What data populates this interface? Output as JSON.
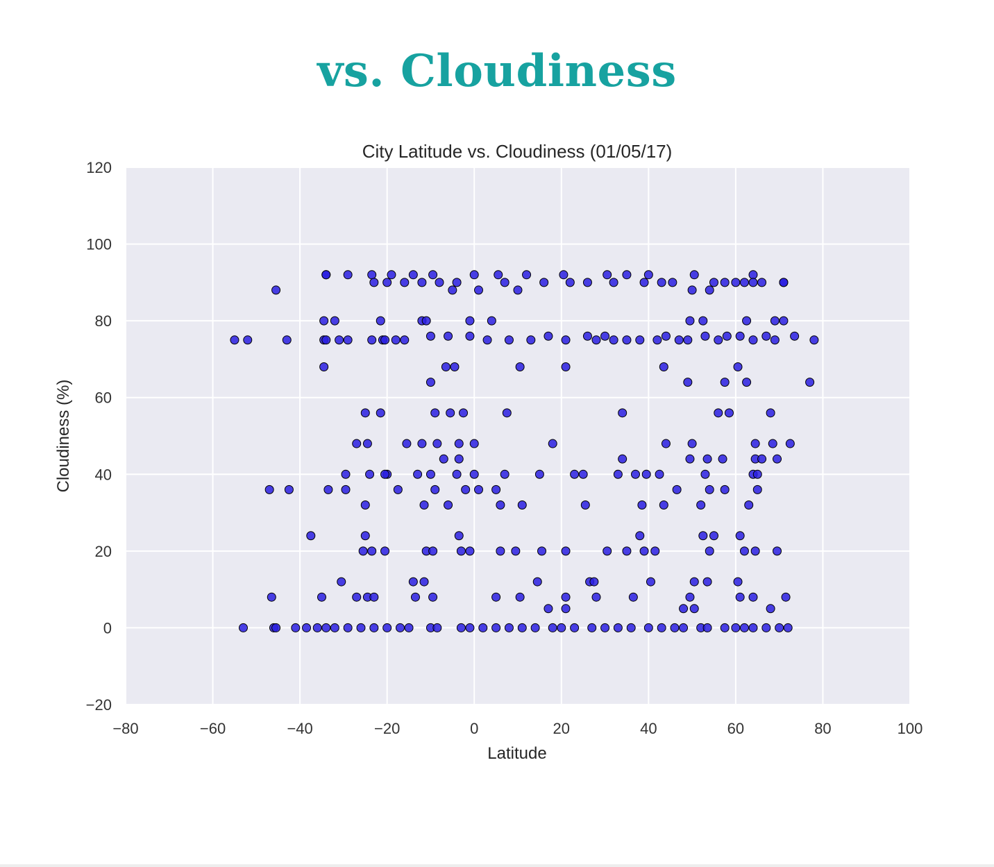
{
  "page": {
    "heading": "vs. Cloudiness"
  },
  "colors": {
    "heading": "#17a2a0",
    "plot_background": "#eaeaf2",
    "grid": "#ffffff",
    "point_fill": "#2a1fe0",
    "point_edge": "#000000"
  },
  "chart_data": {
    "type": "scatter",
    "title": "City Latitude vs. Cloudiness (01/05/17)",
    "xlabel": "Latitude",
    "ylabel": "Cloudiness (%)",
    "xlim": [
      -80,
      100
    ],
    "ylim": [
      -20,
      120
    ],
    "xticks": [
      -80,
      -60,
      -40,
      -20,
      0,
      20,
      40,
      60,
      80,
      100
    ],
    "yticks": [
      -20,
      0,
      20,
      40,
      60,
      80,
      100,
      120
    ],
    "grid": true,
    "x": [
      -55,
      -52,
      -43,
      -34.5,
      -34,
      -31,
      -29,
      -23.5,
      -21,
      -20.5,
      -18,
      -16,
      -10,
      -6,
      -1,
      3,
      8,
      13,
      17,
      21,
      26,
      28,
      30,
      32,
      35,
      38,
      42,
      44,
      47,
      49,
      53,
      56,
      58,
      61,
      64,
      67,
      69,
      73.5,
      78,
      -53,
      -46,
      -45.5,
      -41,
      -38.5,
      -36,
      -34,
      -32,
      -29,
      -26,
      -23,
      -20,
      -17,
      -15,
      -10,
      -8.5,
      -3,
      -1,
      2,
      5,
      8,
      11,
      14,
      18,
      20,
      23,
      27,
      30,
      33,
      36,
      40,
      43,
      46,
      48,
      52,
      53.5,
      57.5,
      60,
      62,
      64,
      67,
      70,
      72,
      -45.5,
      -34,
      -29,
      -23.5,
      -19,
      -14,
      -9.5,
      -5,
      1,
      5.5,
      12,
      20.5,
      30.5,
      35,
      40,
      45.5,
      50.5,
      55,
      60,
      62,
      64,
      66,
      71,
      -34,
      -23,
      -20,
      -16,
      -12,
      -8,
      -4,
      0,
      7,
      10,
      16,
      22,
      26,
      32,
      39,
      43,
      50,
      54,
      57.5,
      64,
      71,
      -34.5,
      -32,
      -21.5,
      -12,
      -11,
      -1,
      4,
      49.5,
      52.5,
      62.5,
      69,
      71,
      -34.5,
      -20,
      -10,
      -6.5,
      -4.5,
      10.5,
      21,
      43.5,
      49,
      57.5,
      60.5,
      62.5,
      77,
      -25,
      -21.5,
      -9,
      -5.5,
      -2.5,
      7.5,
      34,
      56,
      58.5,
      68,
      -27,
      -24.5,
      -15.5,
      -12,
      -8.5,
      -3.5,
      0,
      18,
      44,
      50,
      64.5,
      68.5,
      72.5,
      -7,
      -3.5,
      34,
      49.5,
      53.5,
      57,
      64.5,
      66,
      69.5,
      -29.5,
      -24,
      -20.5,
      -13,
      -10,
      -4,
      0,
      7,
      15,
      23,
      25,
      33,
      37,
      39.5,
      42.5,
      53,
      64,
      65,
      -47,
      -42.5,
      -33.5,
      -29.5,
      -25,
      -17.5,
      -11.5,
      -9,
      -6,
      -2,
      1,
      5,
      6,
      11,
      25.5,
      38.5,
      43.5,
      46.5,
      52,
      54,
      57.5,
      63,
      65,
      -37.5,
      -25,
      -3.5,
      38,
      52.5,
      55,
      61,
      -25.5,
      -23.5,
      -20.5,
      -11,
      -9.5,
      -3,
      -1,
      6,
      9.5,
      15.5,
      21,
      30.5,
      35,
      39,
      41.5,
      54,
      62,
      64.5,
      69.5,
      -30.5,
      -14,
      -11.5,
      14.5,
      26.5,
      27.5,
      40.5,
      50.5,
      53.5,
      60.5,
      -46.5,
      -35,
      -27,
      -24.5,
      -23,
      -13.5,
      -9.5,
      5,
      10.5,
      21,
      28,
      36.5,
      49.5,
      61,
      64,
      71.5,
      17,
      21,
      48,
      50.5,
      68
    ],
    "y": [
      75,
      75,
      75,
      75,
      75,
      75,
      75,
      75,
      75,
      75,
      75,
      75,
      76,
      76,
      76,
      75,
      75,
      75,
      76,
      75,
      76,
      75,
      76,
      75,
      75,
      75,
      75,
      76,
      75,
      75,
      76,
      75,
      76,
      76,
      75,
      76,
      75,
      76,
      75,
      0,
      0,
      0,
      0,
      0,
      0,
      0,
      0,
      0,
      0,
      0,
      0,
      0,
      0,
      0,
      0,
      0,
      0,
      0,
      0,
      0,
      0,
      0,
      0,
      0,
      0,
      0,
      0,
      0,
      0,
      0,
      0,
      0,
      0,
      0,
      0,
      0,
      0,
      0,
      0,
      0,
      0,
      0,
      88,
      92,
      92,
      92,
      92,
      92,
      92,
      88,
      88,
      92,
      92,
      92,
      92,
      92,
      92,
      90,
      92,
      90,
      90,
      90,
      92,
      90,
      90,
      92,
      90,
      90,
      90,
      90,
      90,
      90,
      92,
      90,
      88,
      90,
      90,
      90,
      90,
      90,
      90,
      88,
      88,
      90,
      90,
      90,
      80,
      80,
      80,
      80,
      80,
      80,
      80,
      80,
      80,
      80,
      80,
      80,
      68,
      40,
      64,
      68,
      68,
      68,
      68,
      68,
      64,
      64,
      68,
      64,
      64,
      56,
      56,
      56,
      56,
      56,
      56,
      56,
      56,
      56,
      56,
      48,
      48,
      48,
      48,
      48,
      48,
      48,
      48,
      48,
      48,
      48,
      48,
      48,
      44,
      44,
      44,
      44,
      44,
      44,
      44,
      44,
      44,
      40,
      40,
      40,
      40,
      40,
      40,
      40,
      40,
      40,
      40,
      40,
      40,
      40,
      40,
      40,
      40,
      40,
      40,
      36,
      36,
      36,
      36,
      32,
      36,
      32,
      36,
      32,
      36,
      36,
      36,
      32,
      32,
      32,
      32,
      32,
      36,
      32,
      36,
      36,
      32,
      36,
      24,
      24,
      24,
      24,
      24,
      24,
      24,
      20,
      20,
      20,
      20,
      20,
      20,
      20,
      20,
      20,
      20,
      20,
      20,
      20,
      20,
      20,
      20,
      20,
      20,
      20,
      12,
      12,
      12,
      12,
      12,
      12,
      12,
      12,
      12,
      12,
      8,
      8,
      8,
      8,
      8,
      8,
      8,
      8,
      8,
      8,
      8,
      8,
      8,
      8,
      8,
      8,
      5,
      5,
      5,
      5,
      5
    ]
  }
}
